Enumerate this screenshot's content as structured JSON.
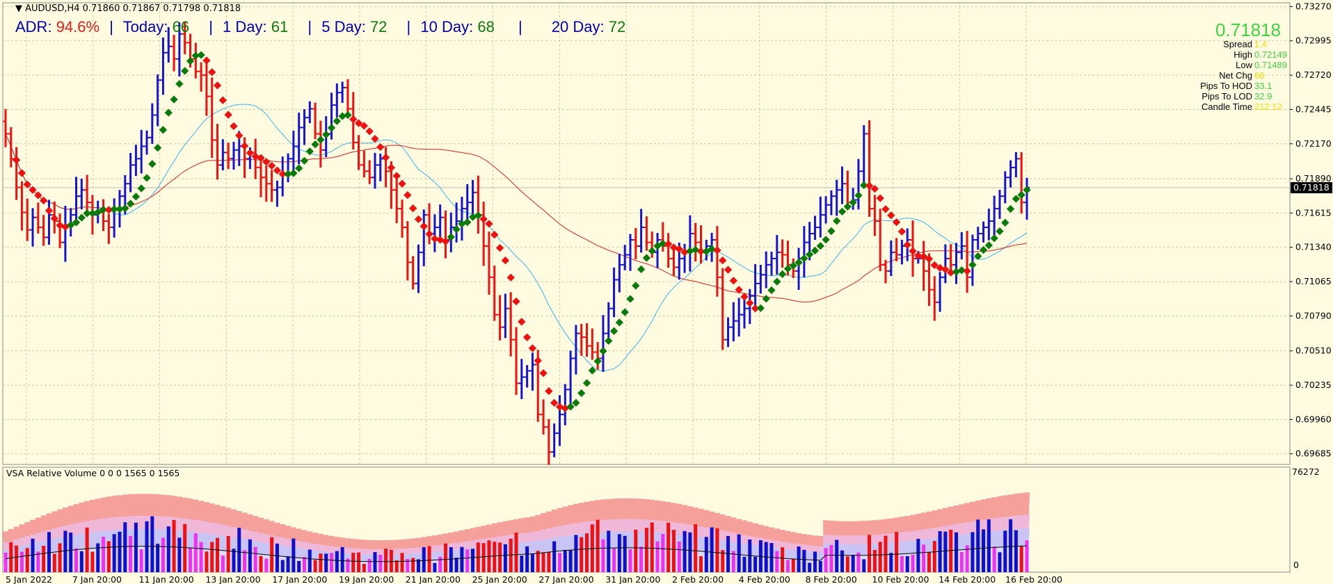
{
  "header": {
    "symbol": "AUDUSD,H4",
    "ohlc": "0.71860 0.71867 0.71798 0.71818"
  },
  "adr": {
    "adr_label": "ADR:",
    "adr_value": "94.6%",
    "today_label": "Today:",
    "today_value": "66",
    "d1_label": "1 Day:",
    "d1_value": "61",
    "d5_label": "5 Day:",
    "d5_value": "72",
    "d10_label": "10 Day:",
    "d10_value": "68",
    "d20_label": "20 Day:",
    "d20_value": "72",
    "sep": "|"
  },
  "info_panel": {
    "price": "0.71818",
    "rows": [
      {
        "label": "Spread",
        "value": "1.4",
        "color": "#ffd700"
      },
      {
        "label": "High",
        "value": "0.72149",
        "color": "#3fd53f"
      },
      {
        "label": "Low",
        "value": "0.71489",
        "color": "#3fd53f"
      },
      {
        "label": "Net Chg",
        "value": "66",
        "color": "#ffd700"
      },
      {
        "label": "Pips To HOD",
        "value": "33.1",
        "color": "#3fd53f"
      },
      {
        "label": "Pips To LOD",
        "value": "32.9",
        "color": "#3fd53f"
      },
      {
        "label": "Candle Time",
        "value": "212:12",
        "color": "#ffd700"
      }
    ]
  },
  "volume_panel": {
    "label": "VSA Relative Volume 0 0 0 1565 0 1565",
    "top_value": "76272",
    "bottom_value": "0"
  },
  "colors": {
    "background": "#fffbe0",
    "up_bar": "#1515d0",
    "down_bar": "#ee1111",
    "trend_up": "#0a7a0a",
    "trend_down": "#ee1111",
    "ma_fast": "#38b6e8",
    "ma_slow": "#e02020",
    "grid": "#c8c090"
  },
  "chart_data": {
    "type": "ohlc",
    "symbol": "AUDUSD",
    "timeframe": "H4",
    "current_price": 0.71818,
    "ylim": [
      0.696,
      0.733
    ],
    "y_ticks": [
      0.7327,
      0.72995,
      0.7272,
      0.72445,
      0.7217,
      0.7189,
      0.71615,
      0.7134,
      0.71065,
      0.7079,
      0.7051,
      0.70235,
      0.6996,
      0.69685
    ],
    "x_tick_labels": [
      "5 Jan 2022",
      "7 Jan 20:00",
      "11 Jan 20:00",
      "13 Jan 20:00",
      "17 Jan 20:00",
      "19 Jan 20:00",
      "21 Jan 20:00",
      "25 Jan 20:00",
      "27 Jan 20:00",
      "31 Jan 20:00",
      "2 Feb 20:00",
      "4 Feb 20:00",
      "8 Feb 20:00",
      "10 Feb 20:00",
      "14 Feb 20:00",
      "16 Feb 20:00"
    ],
    "closes": [
      0.7225,
      0.7205,
      0.7182,
      0.7162,
      0.7148,
      0.7158,
      0.715,
      0.7142,
      0.716,
      0.7155,
      0.7138,
      0.7152,
      0.716,
      0.7175,
      0.718,
      0.717,
      0.716,
      0.7162,
      0.7155,
      0.715,
      0.7165,
      0.7175,
      0.7185,
      0.72,
      0.7205,
      0.7215,
      0.7222,
      0.724,
      0.7268,
      0.729,
      0.7295,
      0.7285,
      0.7305,
      0.7298,
      0.7285,
      0.7275,
      0.7272,
      0.7255,
      0.722,
      0.72,
      0.721,
      0.7205,
      0.7212,
      0.7215,
      0.7205,
      0.721,
      0.7198,
      0.719,
      0.7185,
      0.718,
      0.7182,
      0.7192,
      0.7205,
      0.7215,
      0.723,
      0.7238,
      0.7245,
      0.7225,
      0.7212,
      0.7225,
      0.7248,
      0.7258,
      0.7262,
      0.7245,
      0.7218,
      0.72,
      0.7195,
      0.719,
      0.72,
      0.7205,
      0.7195,
      0.718,
      0.7165,
      0.715,
      0.7122,
      0.7105,
      0.713,
      0.716,
      0.7145,
      0.715,
      0.7158,
      0.714,
      0.715,
      0.7155,
      0.7165,
      0.717,
      0.7178,
      0.716,
      0.7135,
      0.711,
      0.708,
      0.707,
      0.7085,
      0.706,
      0.7025,
      0.703,
      0.7035,
      0.704,
      0.7,
      0.699,
      0.697,
      0.6985,
      0.7,
      0.702,
      0.7045,
      0.7065,
      0.7062,
      0.7055,
      0.705,
      0.7045,
      0.7065,
      0.7085,
      0.7108,
      0.712,
      0.7128,
      0.714,
      0.7135,
      0.715,
      0.7138,
      0.713,
      0.714,
      0.7135,
      0.7125,
      0.7118,
      0.7125,
      0.713,
      0.7145,
      0.7138,
      0.713,
      0.7135,
      0.714,
      0.711,
      0.706,
      0.707,
      0.7075,
      0.708,
      0.7085,
      0.7095,
      0.7105,
      0.7112,
      0.712,
      0.7125,
      0.713,
      0.7128,
      0.712,
      0.7115,
      0.7125,
      0.7138,
      0.7145,
      0.715,
      0.716,
      0.7168,
      0.7175,
      0.718,
      0.7185,
      0.717,
      0.7172,
      0.7195,
      0.7225,
      0.7165,
      0.7155,
      0.712,
      0.7115,
      0.713,
      0.7128,
      0.7135,
      0.714,
      0.7125,
      0.7125,
      0.7115,
      0.71,
      0.709,
      0.711,
      0.7125,
      0.712,
      0.713,
      0.7135,
      0.711,
      0.714,
      0.7145,
      0.715,
      0.7155,
      0.7165,
      0.7175,
      0.719,
      0.7198,
      0.7205,
      0.717,
      0.7182
    ],
    "volume_ylim": [
      0,
      76272
    ]
  }
}
